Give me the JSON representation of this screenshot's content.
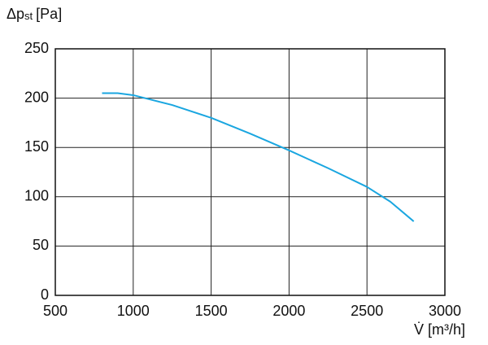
{
  "chart_data": {
    "type": "line",
    "y_label": {
      "symbol": "Δp",
      "subscript": "st",
      "unit": "[Pa]"
    },
    "x_label": "V̇ [m³/h]",
    "x": [
      800,
      900,
      1000,
      1250,
      1500,
      1750,
      2000,
      2250,
      2500,
      2650,
      2800
    ],
    "series": [
      {
        "color": "#1aa6e0",
        "values": [
          205,
          205,
          203,
          193,
          180,
          164,
          147,
          129,
          110,
          95,
          75
        ]
      }
    ],
    "xlim": [
      500,
      3000
    ],
    "xticks": [
      500,
      1000,
      1500,
      2000,
      2500,
      3000
    ],
    "ylim": [
      0,
      250
    ],
    "yticks": [
      0,
      50,
      100,
      150,
      200,
      250
    ],
    "grid": true
  }
}
